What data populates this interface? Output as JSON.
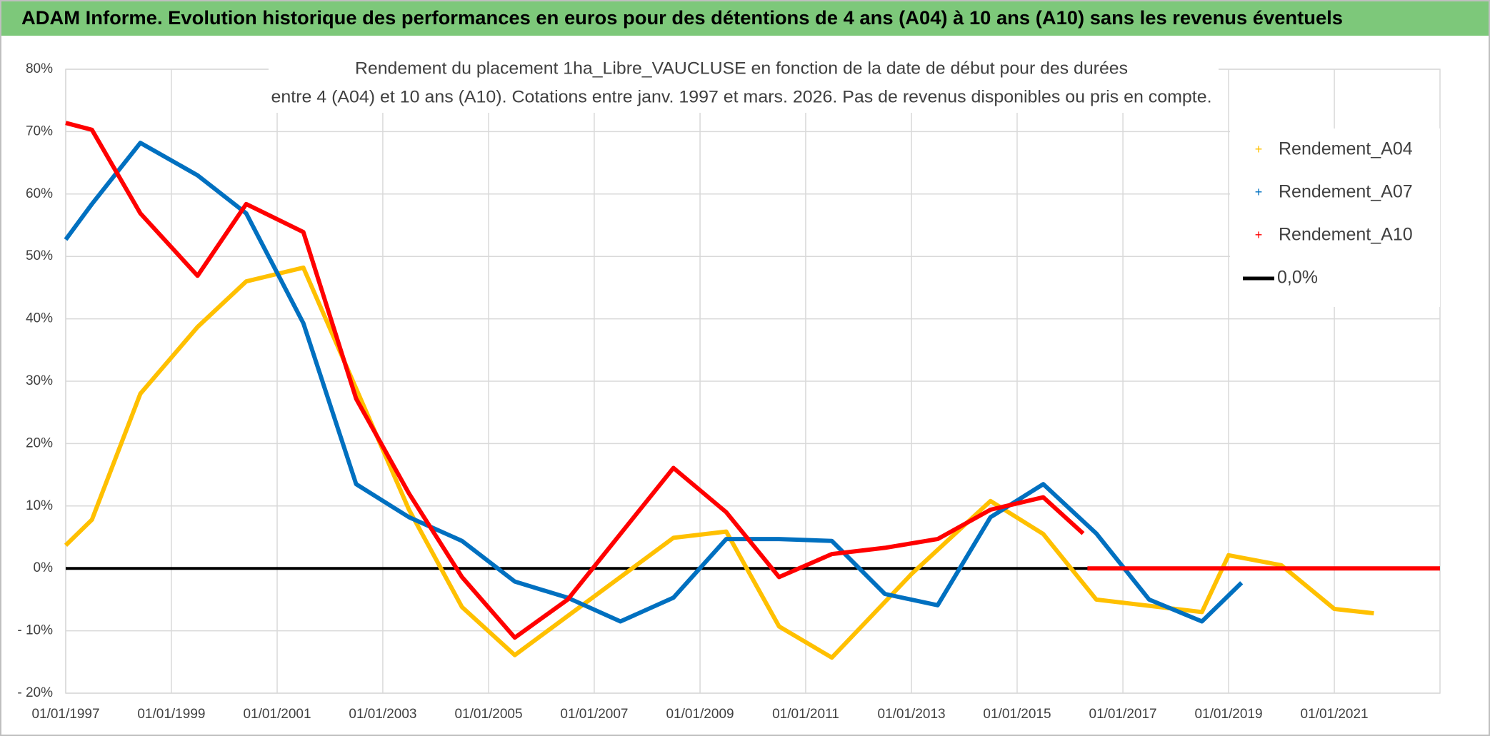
{
  "header": {
    "title": "ADAM Informe. Evolution historique des performances en euros pour des détentions de 4 ans (A04) à 10 ans (A10) sans les revenus éventuels"
  },
  "chart_data": {
    "type": "line",
    "title": [
      "Rendement du placement 1ha_Libre_VAUCLUSE en fonction de la date de début pour des durées",
      "entre 4 (A04) et 10 ans (A10). Cotations entre janv. 1997 et mars. 2026. Pas de revenus disponibles ou pris en compte."
    ],
    "xlim": [
      "01/01/1997",
      "01/01/2023"
    ],
    "xticks": [
      "01/01/1997",
      "01/01/1999",
      "01/01/2001",
      "01/01/2003",
      "01/01/2005",
      "01/01/2007",
      "01/01/2009",
      "01/01/2011",
      "01/01/2013",
      "01/01/2015",
      "01/01/2017",
      "01/01/2019",
      "01/01/2021"
    ],
    "ylim": [
      -20,
      80
    ],
    "yticks": [
      {
        "value": -20,
        "label": "- 20%"
      },
      {
        "value": -10,
        "label": "- 10%"
      },
      {
        "value": 0,
        "label": "0%"
      },
      {
        "value": 10,
        "label": "10%"
      },
      {
        "value": 20,
        "label": "20%"
      },
      {
        "value": 30,
        "label": "30%"
      },
      {
        "value": 40,
        "label": "40%"
      },
      {
        "value": 50,
        "label": "50%"
      },
      {
        "value": 60,
        "label": "60%"
      },
      {
        "value": 70,
        "label": "70%"
      },
      {
        "value": 80,
        "label": "80%"
      }
    ],
    "grid": true,
    "legend": "upper right",
    "series": [
      {
        "name": "Rendement_A04",
        "color": "#ffc000",
        "marker": "+",
        "x": [
          "01/01/1997",
          "01/07/1997",
          "01/06/1998",
          "01/07/1999",
          "01/06/2000",
          "01/07/2001",
          "01/07/2003",
          "01/07/2004",
          "01/07/2005",
          "01/07/2008",
          "01/07/2009",
          "01/07/2010",
          "01/07/2011",
          "01/01/2013",
          "01/07/2014",
          "01/07/2015",
          "01/07/2016",
          "01/07/2018",
          "01/01/2019",
          "01/01/2020",
          "01/01/2021",
          "01/10/2021"
        ],
        "values": [
          3.7,
          7.8,
          28,
          38.7,
          46,
          48.2,
          9.4,
          -6.2,
          -13.9,
          4.9,
          5.9,
          -9.3,
          -14.3,
          -0.9,
          10.8,
          5.5,
          -5.0,
          -7.0,
          2.1,
          0.5,
          -6.5,
          -7.2
        ]
      },
      {
        "name": "Rendement_A07",
        "color": "#0070c0",
        "marker": "+",
        "x": [
          "01/01/1997",
          "01/07/1997",
          "01/06/1998",
          "01/07/1999",
          "01/06/2000",
          "01/07/2001",
          "01/07/2002",
          "01/07/2003",
          "01/07/2004",
          "01/07/2005",
          "01/07/2006",
          "01/07/2007",
          "01/07/2008",
          "01/07/2009",
          "01/07/2010",
          "01/07/2011",
          "01/07/2012",
          "01/07/2013",
          "01/07/2014",
          "01/07/2015",
          "01/07/2016",
          "01/07/2017",
          "01/07/2018",
          "01/04/2019"
        ],
        "values": [
          52.7,
          58.4,
          68.2,
          63.0,
          56.9,
          39.3,
          13.5,
          8.2,
          4.4,
          -2.1,
          -4.7,
          -8.5,
          -4.7,
          4.7,
          4.7,
          4.4,
          -4.1,
          -5.9,
          8.2,
          13.5,
          5.6,
          -5.0,
          -8.5,
          -2.3
        ]
      },
      {
        "name": "Rendement_A10",
        "color": "#ff0000",
        "marker": "+",
        "x": [
          "01/01/1997",
          "01/07/1997",
          "01/06/1998",
          "01/07/1999",
          "01/06/2000",
          "01/07/2001",
          "01/07/2002",
          "01/07/2003",
          "01/07/2004",
          "01/07/2005",
          "01/07/2006",
          "01/01/2007",
          "01/07/2008",
          "01/07/2009",
          "01/07/2010",
          "01/07/2011",
          "01/07/2012",
          "01/07/2013",
          "01/07/2014",
          "01/07/2015",
          "01/04/2016",
          null,
          "01/05/2016",
          "01/01/2023"
        ],
        "values": [
          71.4,
          70.3,
          56.9,
          46.9,
          58.4,
          53.9,
          27.2,
          12.0,
          -1.4,
          -11.1,
          -5.0,
          0.3,
          16.1,
          9.0,
          -1.4,
          2.3,
          3.3,
          4.7,
          9.4,
          11.4,
          5.6,
          null,
          0,
          0
        ]
      },
      {
        "name": "0,0%",
        "color": "#000000",
        "marker": "line",
        "x": [
          "01/01/1997",
          "01/01/2023"
        ],
        "values": [
          0,
          0
        ]
      }
    ]
  }
}
